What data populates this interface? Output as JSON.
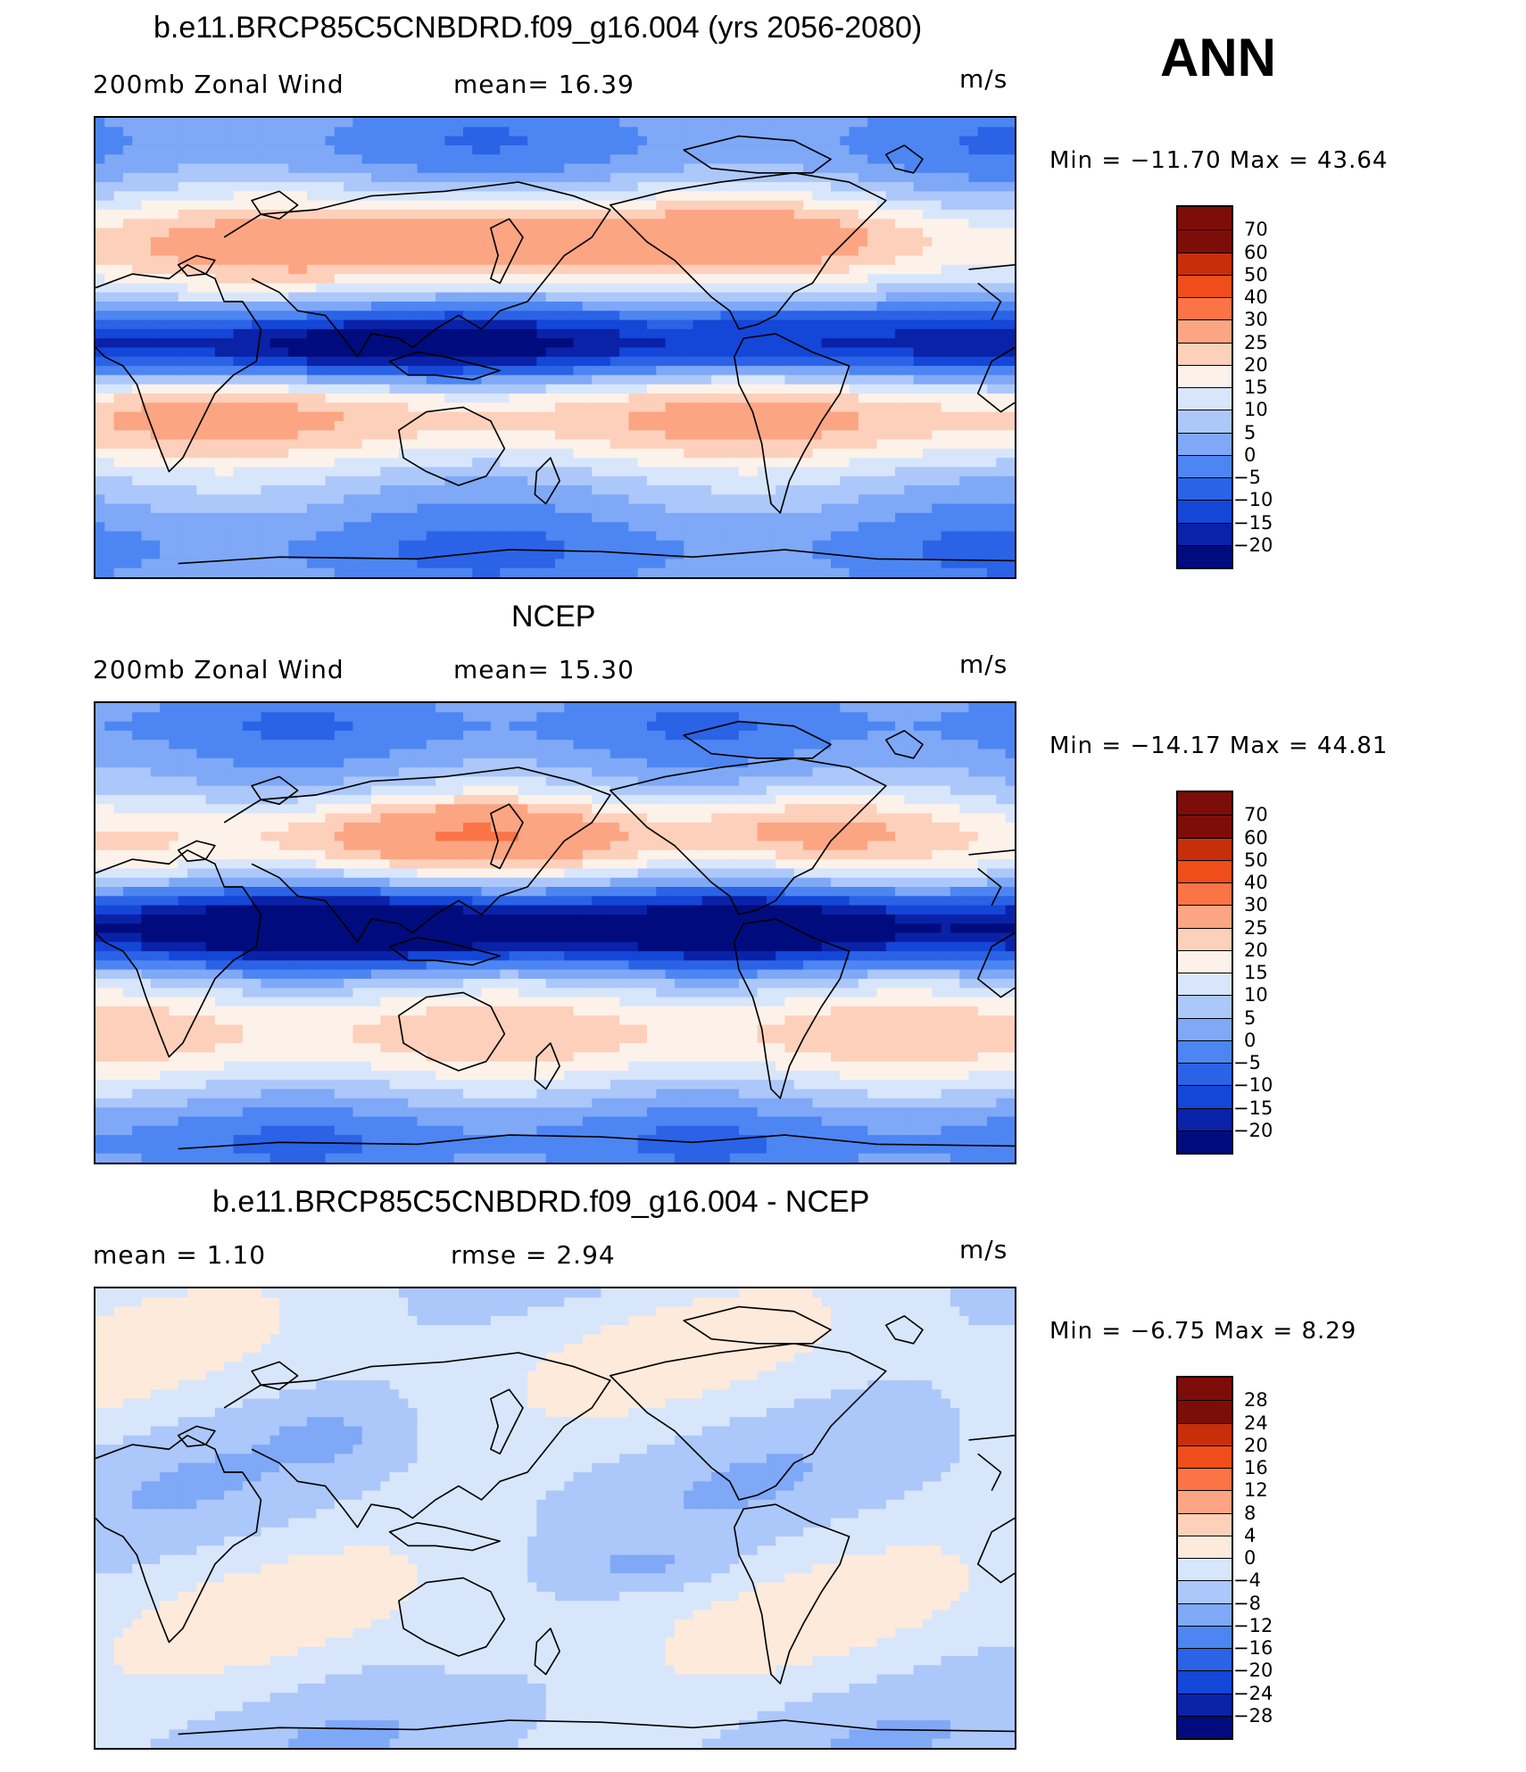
{
  "season": "ANN",
  "units": "m/s",
  "palette": {
    "abs": [
      "#000c7d",
      "#0a22a8",
      "#1446d8",
      "#2a63e6",
      "#4d86f2",
      "#7fa8f7",
      "#acc7f9",
      "#d8e6fb",
      "#fdf2e9",
      "#fdd0bb",
      "#fca583",
      "#fb7446",
      "#f04e1a",
      "#c72f0a",
      "#7d0d08"
    ],
    "diff": [
      "#000c7d",
      "#0a22a8",
      "#1446d8",
      "#2a63e6",
      "#4d86f2",
      "#7fa8f7",
      "#acc7f9",
      "#d8e6fb",
      "#fdeadb",
      "#fdd0bb",
      "#fca583",
      "#fb7446",
      "#f04e1a",
      "#c72f0a",
      "#7d0d08"
    ]
  },
  "panels": [
    {
      "title": "b.e11.BRCP85C5CNBDRD.f09_g16.004 (yrs 2056-2080)",
      "left_label": "200mb Zonal Wind",
      "mid_label": "mean=   16.39",
      "units": "m/s",
      "minmax": "Min  =  −11.70  Max  =    43.64",
      "colorbar_labels": [
        "70",
        "60",
        "50",
        "40",
        "30",
        "25",
        "20",
        "15",
        "10",
        "5",
        "0",
        "−5",
        "−10",
        "−15",
        "−20"
      ],
      "field": "model"
    },
    {
      "title": "NCEP",
      "left_label": "200mb Zonal Wind",
      "mid_label": "mean=   15.30",
      "units": "m/s",
      "minmax": "Min  =  −14.17  Max  =    44.81",
      "colorbar_labels": [
        "70",
        "60",
        "50",
        "40",
        "30",
        "25",
        "20",
        "15",
        "10",
        "5",
        "0",
        "−5",
        "−10",
        "−15",
        "−20"
      ],
      "field": "obs"
    },
    {
      "title": "b.e11.BRCP85C5CNBDRD.f09_g16.004 - NCEP",
      "left_label": "mean  =      1.10",
      "mid_label": "rmse  =     2.94",
      "units": "m/s",
      "minmax": "Min  =    −6.75  Max  =      8.29",
      "colorbar_labels": [
        "28",
        "24",
        "20",
        "16",
        "12",
        "8",
        "4",
        "0",
        "−4",
        "−8",
        "−12",
        "−16",
        "−20",
        "−24",
        "−28"
      ],
      "field": "diff"
    }
  ]
}
